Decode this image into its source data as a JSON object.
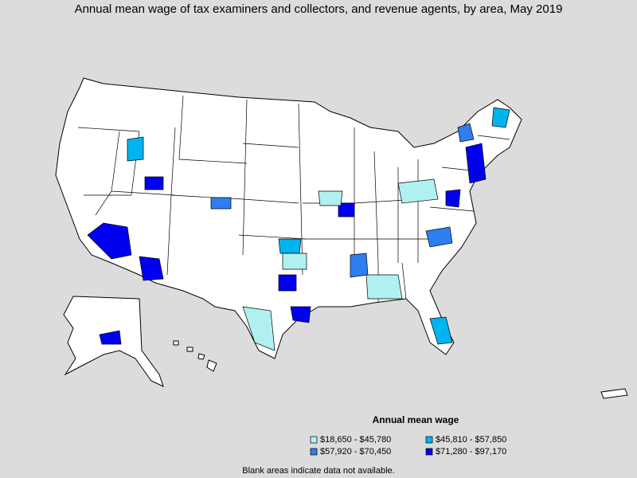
{
  "title": "Annual mean wage of tax examiners and collectors, and revenue agents, by area, May 2019",
  "legend": {
    "title": "Annual mean wage",
    "items": [
      {
        "label": "$18,650 - $45,780",
        "color": "#b0f0f0"
      },
      {
        "label": "$45,810 - $57,850",
        "color": "#00b4f0"
      },
      {
        "label": "$57,920 - $70,450",
        "color": "#2d7ff0"
      },
      {
        "label": "$71,280 - $97,170",
        "color": "#0000f0"
      }
    ]
  },
  "footnote": "Blank areas indicate data not available."
}
